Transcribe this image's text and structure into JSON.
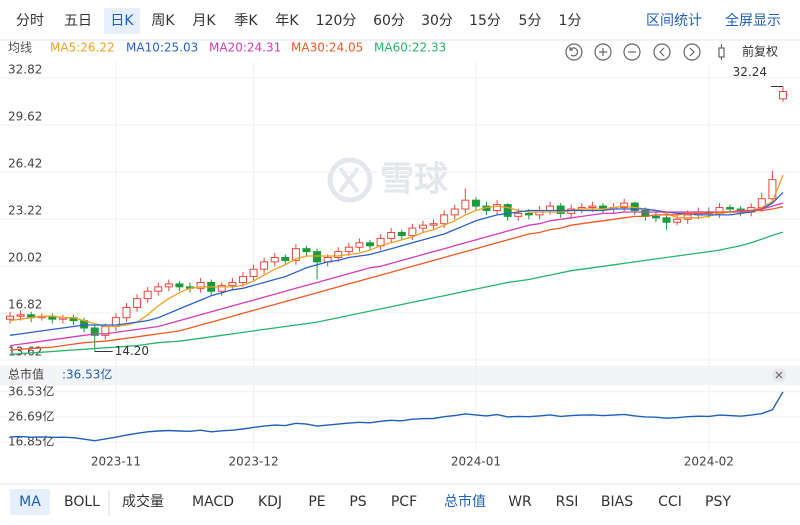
{
  "period_tabs": [
    "分时",
    "五日",
    "日K",
    "周K",
    "月K",
    "季K",
    "年K",
    "120分",
    "60分",
    "30分",
    "15分",
    "5分",
    "1分"
  ],
  "period_active": 2,
  "tools": [
    "区间统计",
    "全屏显示"
  ],
  "adjust": "前复权",
  "watermark": "雪球",
  "main_tabs": [
    "MA",
    "BOLL"
  ],
  "main_active": 0,
  "sub_tabs": [
    "成交量",
    "MACD",
    "KDJ",
    "PE",
    "PS",
    "PCF",
    "总市值",
    "WR",
    "RSI",
    "BIAS",
    "CCI",
    "PSY"
  ],
  "sub_active": 6,
  "chart_data": [
    {
      "type": "candlestick",
      "legend_title": "均线",
      "up_color": "#e8473b",
      "down_color": "#1a9b3c",
      "ylim": [
        13.62,
        32.82
      ],
      "yticks": [
        32.82,
        29.62,
        26.42,
        23.22,
        20.02,
        16.82,
        13.62
      ],
      "grid": true,
      "max_label": "32.24",
      "min_label": "14.20",
      "categories": [
        null,
        null,
        null,
        null,
        null,
        null,
        null,
        null,
        null,
        null,
        "2023-11",
        null,
        null,
        null,
        null,
        null,
        null,
        null,
        null,
        null,
        null,
        null,
        null,
        "2023-12",
        null,
        null,
        null,
        null,
        null,
        null,
        null,
        null,
        null,
        null,
        null,
        null,
        null,
        null,
        null,
        null,
        null,
        null,
        null,
        null,
        "2024-01",
        null,
        null,
        null,
        null,
        null,
        null,
        null,
        null,
        null,
        null,
        null,
        null,
        null,
        null,
        null,
        null,
        null,
        null,
        null,
        null,
        null,
        "2024-02",
        null,
        null,
        null,
        null,
        null,
        null,
        null
      ],
      "open": [
        16.4,
        16.6,
        16.7,
        16.5,
        16.6,
        16.4,
        16.5,
        16.3,
        15.8,
        15.3,
        15.9,
        16.5,
        17.2,
        17.8,
        18.3,
        18.6,
        18.8,
        18.6,
        18.5,
        18.9,
        18.3,
        18.7,
        18.9,
        19.3,
        19.8,
        20.3,
        20.6,
        20.4,
        21.2,
        21.0,
        20.3,
        20.6,
        21.0,
        21.3,
        21.6,
        21.4,
        21.9,
        22.3,
        22.1,
        22.6,
        22.8,
        22.9,
        23.5,
        23.9,
        24.5,
        24.1,
        23.8,
        24.2,
        23.4,
        23.6,
        23.5,
        23.8,
        24.1,
        23.6,
        23.9,
        24.0,
        24.1,
        23.9,
        24.0,
        24.3,
        23.8,
        23.4,
        23.3,
        23.0,
        23.2,
        23.5,
        23.7,
        23.6,
        24.0,
        23.9,
        23.7,
        24.0,
        24.6,
        31.4
      ],
      "close": [
        16.6,
        16.7,
        16.5,
        16.6,
        16.4,
        16.5,
        16.3,
        15.8,
        15.3,
        15.9,
        16.5,
        17.2,
        17.8,
        18.3,
        18.6,
        18.8,
        18.6,
        18.5,
        18.9,
        18.3,
        18.7,
        18.9,
        19.3,
        19.8,
        20.3,
        20.6,
        20.4,
        21.2,
        21.0,
        20.3,
        20.6,
        21.0,
        21.3,
        21.6,
        21.4,
        21.9,
        22.3,
        22.1,
        22.6,
        22.8,
        22.9,
        23.5,
        23.9,
        24.5,
        24.1,
        23.8,
        24.2,
        23.4,
        23.6,
        23.5,
        23.8,
        24.1,
        23.6,
        23.9,
        24.0,
        24.1,
        23.9,
        24.0,
        24.3,
        23.8,
        23.4,
        23.3,
        23.0,
        23.2,
        23.5,
        23.7,
        23.6,
        24.0,
        23.9,
        23.7,
        24.0,
        24.6,
        25.9,
        31.9
      ],
      "high": [
        16.9,
        17.0,
        16.9,
        16.8,
        16.8,
        16.7,
        16.7,
        16.5,
        16.0,
        16.1,
        16.8,
        17.5,
        18.1,
        18.6,
        18.9,
        19.1,
        19.0,
        18.9,
        19.2,
        19.1,
        18.9,
        19.2,
        19.6,
        20.1,
        20.6,
        20.9,
        20.8,
        21.5,
        21.4,
        21.2,
        20.8,
        21.3,
        21.6,
        21.9,
        21.8,
        22.2,
        22.6,
        22.5,
        22.9,
        23.1,
        23.2,
        23.8,
        24.2,
        25.3,
        24.7,
        24.4,
        24.5,
        24.3,
        23.9,
        23.9,
        24.1,
        24.4,
        24.3,
        24.2,
        24.3,
        24.4,
        24.3,
        24.3,
        24.6,
        24.4,
        24.0,
        23.7,
        23.5,
        23.5,
        23.8,
        24.0,
        24.0,
        24.3,
        24.2,
        24.1,
        24.3,
        25.0,
        26.5,
        32.24
      ],
      "low": [
        16.1,
        16.3,
        16.2,
        16.3,
        16.1,
        16.1,
        16.0,
        15.5,
        14.2,
        15.0,
        15.6,
        16.2,
        16.9,
        17.5,
        18.0,
        18.3,
        18.3,
        18.2,
        18.2,
        18.0,
        18.0,
        18.4,
        18.6,
        19.0,
        19.5,
        20.0,
        20.1,
        20.1,
        20.7,
        19.1,
        20.0,
        20.3,
        20.7,
        21.0,
        21.1,
        21.1,
        21.6,
        21.8,
        21.8,
        22.3,
        22.5,
        22.6,
        23.2,
        23.6,
        23.8,
        23.5,
        23.5,
        23.1,
        23.1,
        23.2,
        23.2,
        23.5,
        23.3,
        23.3,
        23.6,
        23.7,
        23.6,
        23.6,
        23.7,
        23.5,
        23.1,
        23.0,
        22.5,
        22.8,
        22.9,
        23.2,
        23.3,
        23.3,
        23.6,
        23.4,
        23.4,
        23.7,
        24.3,
        31.2
      ],
      "series": [
        {
          "name": "MA5",
          "label": "MA5:26.22",
          "color": "#f0a020",
          "values": [
            16.3,
            16.4,
            16.5,
            16.6,
            16.6,
            16.5,
            16.5,
            16.3,
            16.1,
            15.9,
            15.9,
            16.0,
            16.2,
            16.7,
            17.3,
            17.8,
            18.2,
            18.5,
            18.6,
            18.6,
            18.6,
            18.6,
            18.7,
            19.0,
            19.4,
            19.8,
            20.1,
            20.5,
            20.7,
            20.7,
            20.7,
            20.7,
            20.8,
            20.9,
            21.1,
            21.4,
            21.6,
            21.8,
            22.0,
            22.3,
            22.5,
            22.8,
            23.1,
            23.5,
            23.8,
            24.0,
            24.1,
            24.0,
            23.8,
            23.7,
            23.7,
            23.7,
            23.7,
            23.8,
            23.9,
            23.9,
            23.9,
            24.0,
            24.1,
            24.0,
            23.9,
            23.8,
            23.6,
            23.3,
            23.3,
            23.3,
            23.4,
            23.6,
            23.7,
            23.8,
            23.8,
            24.0,
            24.4,
            26.22
          ]
        },
        {
          "name": "MA10",
          "label": "MA10:25.03",
          "color": "#2a62c9",
          "values": [
            15.3,
            15.4,
            15.5,
            15.6,
            15.7,
            15.8,
            15.9,
            16.0,
            16.0,
            16.0,
            16.0,
            16.1,
            16.2,
            16.3,
            16.5,
            16.8,
            17.1,
            17.4,
            17.7,
            18.0,
            18.2,
            18.4,
            18.5,
            18.7,
            18.9,
            19.1,
            19.3,
            19.6,
            19.9,
            20.1,
            20.3,
            20.4,
            20.6,
            20.7,
            20.8,
            21.0,
            21.2,
            21.4,
            21.6,
            21.8,
            22.0,
            22.2,
            22.5,
            22.8,
            23.1,
            23.3,
            23.5,
            23.6,
            23.7,
            23.8,
            23.8,
            23.8,
            23.8,
            23.8,
            23.8,
            23.8,
            23.8,
            23.9,
            23.9,
            23.9,
            23.9,
            23.8,
            23.7,
            23.6,
            23.6,
            23.5,
            23.5,
            23.5,
            23.5,
            23.6,
            23.7,
            23.9,
            24.3,
            25.03
          ]
        },
        {
          "name": "MA20",
          "label": "MA20:24.31",
          "color": "#d43cb8",
          "values": [
            14.6,
            14.7,
            14.8,
            14.9,
            15.0,
            15.1,
            15.2,
            15.3,
            15.4,
            15.4,
            15.5,
            15.6,
            15.7,
            15.8,
            15.9,
            16.1,
            16.3,
            16.5,
            16.7,
            16.9,
            17.1,
            17.3,
            17.5,
            17.7,
            17.9,
            18.1,
            18.3,
            18.5,
            18.7,
            18.9,
            19.1,
            19.3,
            19.5,
            19.7,
            19.9,
            20.0,
            20.2,
            20.4,
            20.6,
            20.8,
            21.0,
            21.2,
            21.4,
            21.6,
            21.8,
            22.0,
            22.2,
            22.4,
            22.6,
            22.8,
            22.9,
            23.1,
            23.2,
            23.3,
            23.4,
            23.5,
            23.6,
            23.6,
            23.7,
            23.7,
            23.7,
            23.7,
            23.7,
            23.7,
            23.7,
            23.7,
            23.7,
            23.7,
            23.7,
            23.8,
            23.8,
            23.9,
            24.1,
            24.31
          ]
        },
        {
          "name": "MA30",
          "label": "MA30:24.05",
          "color": "#ee5a24",
          "values": [
            14.3,
            14.35,
            14.4,
            14.45,
            14.5,
            14.6,
            14.7,
            14.8,
            14.85,
            14.9,
            15.0,
            15.1,
            15.2,
            15.3,
            15.4,
            15.5,
            15.6,
            15.8,
            16.0,
            16.2,
            16.4,
            16.6,
            16.8,
            17.0,
            17.2,
            17.4,
            17.6,
            17.8,
            18.0,
            18.2,
            18.4,
            18.6,
            18.8,
            19.0,
            19.2,
            19.4,
            19.6,
            19.8,
            20.0,
            20.2,
            20.4,
            20.6,
            20.8,
            21.0,
            21.2,
            21.4,
            21.6,
            21.8,
            22.0,
            22.2,
            22.3,
            22.5,
            22.6,
            22.8,
            22.9,
            23.0,
            23.1,
            23.2,
            23.3,
            23.4,
            23.4,
            23.5,
            23.5,
            23.5,
            23.6,
            23.6,
            23.6,
            23.7,
            23.7,
            23.7,
            23.8,
            23.8,
            23.9,
            24.05
          ]
        },
        {
          "name": "MA60",
          "label": "MA60:22.33",
          "color": "#27b36a",
          "values": [
            14.0,
            14.05,
            14.1,
            14.15,
            14.2,
            14.25,
            14.3,
            14.35,
            14.4,
            14.45,
            14.5,
            14.55,
            14.6,
            14.7,
            14.8,
            14.85,
            14.9,
            15.0,
            15.1,
            15.2,
            15.3,
            15.4,
            15.5,
            15.6,
            15.7,
            15.8,
            15.9,
            16.0,
            16.1,
            16.2,
            16.35,
            16.5,
            16.65,
            16.8,
            16.95,
            17.1,
            17.25,
            17.4,
            17.55,
            17.7,
            17.85,
            18.0,
            18.15,
            18.3,
            18.45,
            18.6,
            18.75,
            18.9,
            19.0,
            19.1,
            19.25,
            19.4,
            19.55,
            19.7,
            19.8,
            19.9,
            20.0,
            20.1,
            20.2,
            20.3,
            20.4,
            20.5,
            20.6,
            20.7,
            20.8,
            20.9,
            21.0,
            21.1,
            21.25,
            21.4,
            21.6,
            21.85,
            22.1,
            22.33
          ]
        }
      ]
    },
    {
      "type": "line",
      "title": "总市值",
      "value_label": ":36.53亿",
      "color": "#1f5fb7",
      "ylim": [
        13.0,
        38.0
      ],
      "yticks": [
        {
          "value": 36.53,
          "label": "36.53亿"
        },
        {
          "value": 26.69,
          "label": "26.69亿"
        },
        {
          "value": 16.85,
          "label": "16.85亿"
        }
      ],
      "values": [
        18.9,
        19.0,
        18.8,
        18.9,
        18.7,
        18.8,
        18.6,
        18.0,
        17.4,
        18.1,
        18.8,
        19.6,
        20.3,
        20.9,
        21.2,
        21.4,
        21.2,
        21.1,
        21.5,
        20.9,
        21.3,
        21.5,
        22.0,
        22.6,
        23.1,
        23.5,
        23.3,
        24.2,
        23.9,
        23.1,
        23.5,
        23.9,
        24.3,
        24.6,
        24.4,
        25.0,
        25.4,
        25.2,
        25.8,
        26.0,
        26.1,
        26.8,
        27.2,
        27.9,
        27.5,
        27.1,
        27.6,
        26.7,
        26.9,
        26.8,
        27.1,
        27.5,
        26.9,
        27.2,
        27.4,
        27.5,
        27.2,
        27.4,
        27.7,
        27.1,
        26.7,
        26.6,
        26.2,
        26.4,
        26.8,
        27.0,
        26.9,
        27.4,
        27.2,
        27.0,
        27.4,
        28.0,
        29.5,
        36.53
      ]
    }
  ]
}
